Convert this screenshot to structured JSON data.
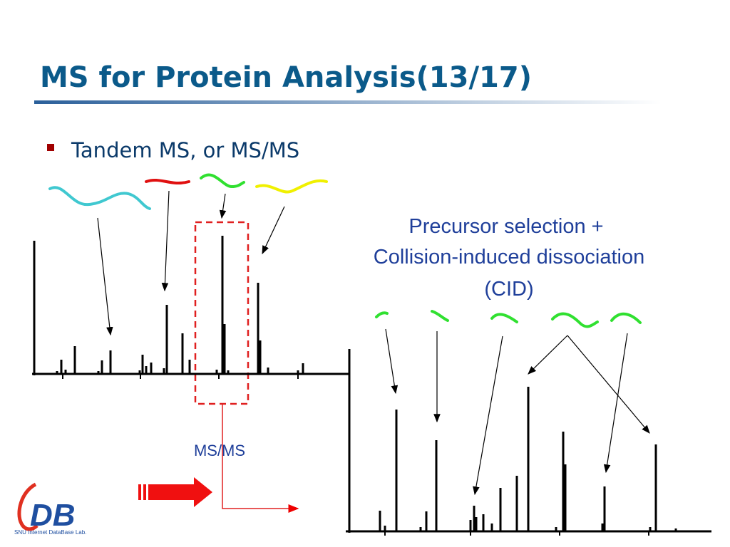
{
  "slide": {
    "title": "MS for Protein Analysis(13/17)",
    "bullet": "Tandem MS, or MS/MS",
    "annotation": [
      "Precursor selection +",
      "Collision-induced dissociation",
      "(CID)"
    ],
    "step_label": "MS/MS",
    "logo": {
      "mark": "DB",
      "caption": "SNU Internet DataBase Lab."
    }
  }
}
